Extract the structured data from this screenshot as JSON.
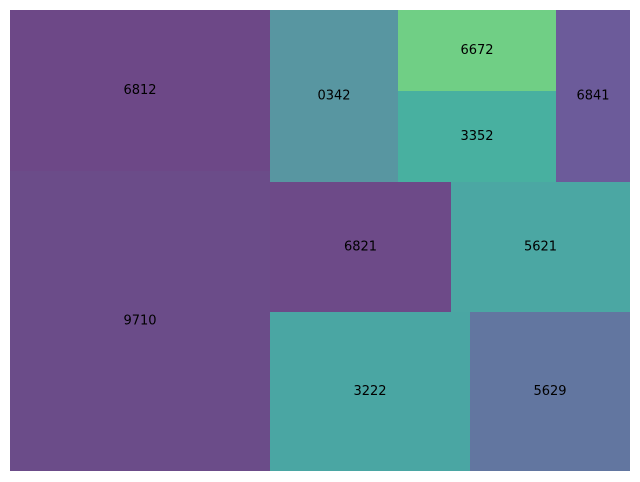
{
  "chart_data": {
    "type": "treemap",
    "title": "",
    "cells": [
      {
        "label": "9710",
        "color": "#6b4c89"
      },
      {
        "label": "6812",
        "color": "#6d4887"
      },
      {
        "label": "0342",
        "color": "#5896a1"
      },
      {
        "label": "6672",
        "color": "#70cf85"
      },
      {
        "label": "3352",
        "color": "#48b0a0"
      },
      {
        "label": "6841",
        "color": "#6c5b9a"
      },
      {
        "label": "6821",
        "color": "#6d4a88"
      },
      {
        "label": "5621",
        "color": "#4ba7a3"
      },
      {
        "label": "3222",
        "color": "#4aa6a3"
      },
      {
        "label": "5629",
        "color": "#6276a0"
      }
    ]
  }
}
